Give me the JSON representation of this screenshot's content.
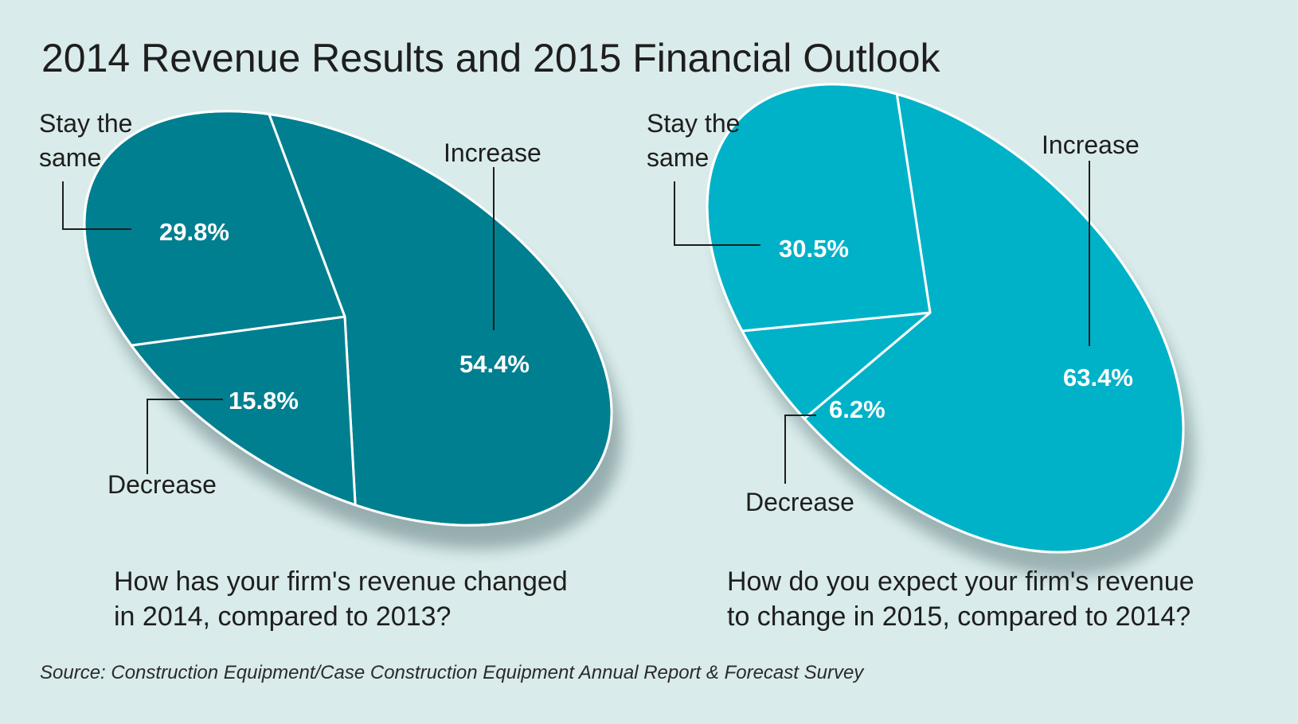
{
  "title": "2014 Revenue Results and 2015 Financial Outlook",
  "source": "Source: Construction Equipment/Case Construction Equipment Annual Report & Forecast Survey",
  "chart_data": [
    {
      "type": "pie",
      "title": "How has your firm's revenue changed in 2014, compared to 2013?",
      "question_lines": [
        "How has your firm's revenue changed",
        "in 2014, compared to 2013?"
      ],
      "color": "#007f90",
      "slices": [
        {
          "name": "Increase",
          "label_lines": [
            "Increase"
          ],
          "value": 54.4,
          "value_label": "54.4%"
        },
        {
          "name": "Decrease",
          "label_lines": [
            "Decrease"
          ],
          "value": 15.8,
          "value_label": "15.8%"
        },
        {
          "name": "Stay the same",
          "label_lines": [
            "Stay the",
            "same"
          ],
          "value": 29.8,
          "value_label": "29.8%"
        }
      ]
    },
    {
      "type": "pie",
      "title": "How do you expect your firm's revenue to change in 2015, compared to 2014?",
      "question_lines": [
        "How do you expect your firm's revenue",
        "to change in 2015, compared to 2014?"
      ],
      "color": "#00b2c8",
      "slices": [
        {
          "name": "Increase",
          "label_lines": [
            "Increase"
          ],
          "value": 63.4,
          "value_label": "63.4%"
        },
        {
          "name": "Decrease",
          "label_lines": [
            "Decrease"
          ],
          "value": 6.2,
          "value_label": "6.2%"
        },
        {
          "name": "Stay the same",
          "label_lines": [
            "Stay the",
            "same"
          ],
          "value": 30.5,
          "value_label": "30.5%"
        }
      ]
    }
  ]
}
